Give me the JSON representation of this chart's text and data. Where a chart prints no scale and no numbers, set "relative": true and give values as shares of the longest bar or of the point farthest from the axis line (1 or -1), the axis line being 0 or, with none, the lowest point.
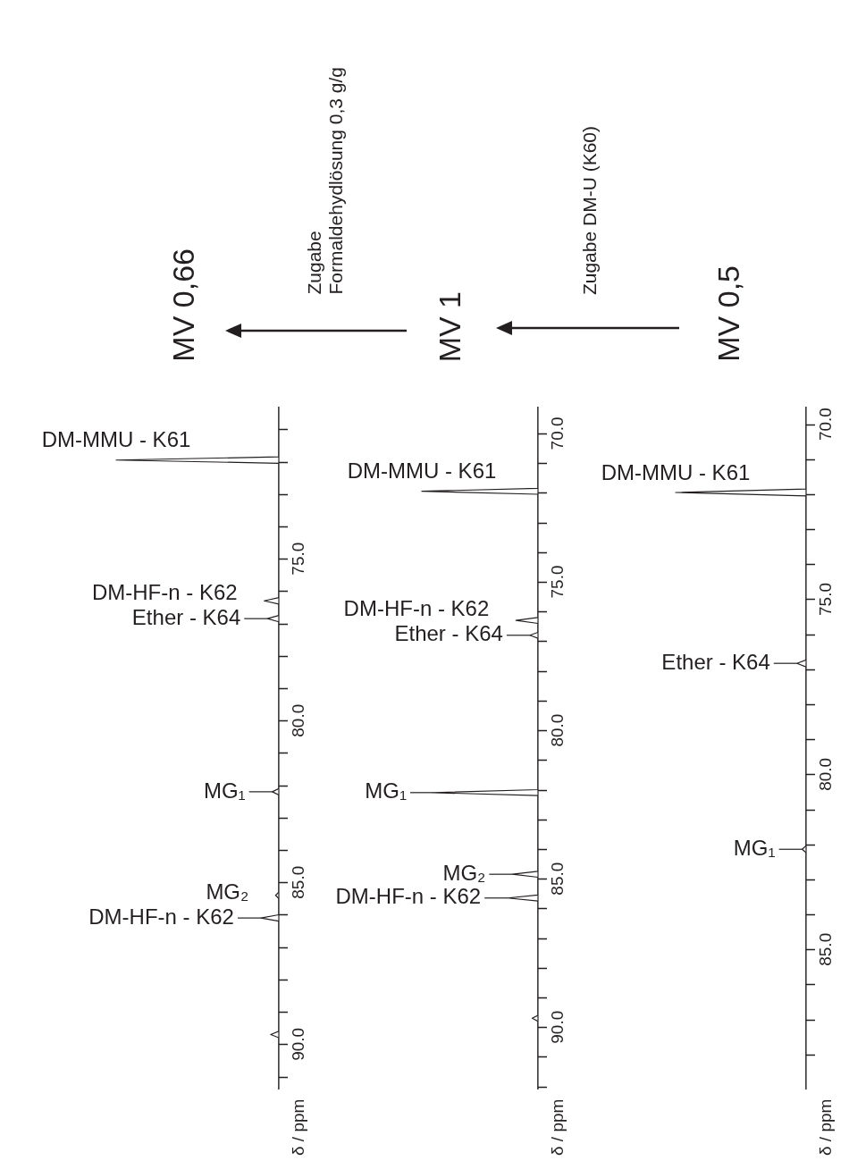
{
  "chart_data": [
    {
      "type": "line",
      "title": "MV 0,66",
      "orientation": "horizontal",
      "relative": true,
      "marker": "none",
      "color": "#231f20",
      "ylabel": "δ / ppm",
      "ylim": [
        91.4,
        70.3
      ],
      "yticks": [
        {
          "value": 71,
          "label": null
        },
        {
          "value": 72,
          "label": null
        },
        {
          "value": 73,
          "label": null
        },
        {
          "value": 74,
          "label": null
        },
        {
          "value": 75,
          "label": "75.0"
        },
        {
          "value": 76,
          "label": null
        },
        {
          "value": 77,
          "label": null
        },
        {
          "value": 78,
          "label": null
        },
        {
          "value": 79,
          "label": null
        },
        {
          "value": 80,
          "label": "80.0"
        },
        {
          "value": 81,
          "label": null
        },
        {
          "value": 82,
          "label": null
        },
        {
          "value": 83,
          "label": null
        },
        {
          "value": 84,
          "label": null
        },
        {
          "value": 85,
          "label": "85.0"
        },
        {
          "value": 86,
          "label": null
        },
        {
          "value": 87,
          "label": null
        },
        {
          "value": 88,
          "label": null
        },
        {
          "value": 89,
          "label": null
        },
        {
          "value": 90,
          "label": "90.0"
        },
        {
          "value": 91,
          "label": null
        }
      ],
      "x": [
        70.3,
        71.85,
        71.95,
        72.05,
        76.2,
        76.3,
        76.4,
        76.75,
        76.85,
        76.95,
        82.1,
        82.2,
        82.3,
        85.3,
        85.4,
        85.5,
        86.0,
        86.1,
        86.2,
        89.6,
        89.7,
        89.8,
        91.4
      ],
      "values": [
        0,
        0,
        -1,
        0,
        0,
        -0.09,
        0,
        0,
        -0.07,
        0,
        0,
        -0.04,
        0,
        0,
        -0.02,
        0,
        0,
        -0.11,
        0,
        0,
        -0.05,
        0,
        0
      ],
      "annotations": [
        "Zugabe\nFormaldehydlösung 0,3 g/g",
        {
          "text": "DM-MMU - K61",
          "x": -1,
          "y": 71.95
        },
        {
          "text": "DM-HF-n - K62",
          "x": -0.09,
          "y": 76.3
        },
        {
          "text": "Ether - K64",
          "x": -0.07,
          "y": 76.85
        },
        {
          "text": "MG₁",
          "x": -0.04,
          "y": 82.2
        },
        {
          "text": "MG₂",
          "x": -0.02,
          "y": 85.4
        },
        {
          "text": "DM-HF-n - K62",
          "x": -0.11,
          "y": 86.1
        }
      ]
    },
    {
      "type": "line",
      "title": "MV 1",
      "orientation": "horizontal",
      "relative": true,
      "marker": "none",
      "color": "#231f20",
      "ylabel": "δ / ppm",
      "ylim": [
        92.1,
        69.1
      ],
      "yticks": [
        {
          "value": 70,
          "label": "70.0"
        },
        {
          "value": 71,
          "label": null
        },
        {
          "value": 72,
          "label": null
        },
        {
          "value": 73,
          "label": null
        },
        {
          "value": 74,
          "label": null
        },
        {
          "value": 75,
          "label": "75.0"
        },
        {
          "value": 76,
          "label": null
        },
        {
          "value": 77,
          "label": null
        },
        {
          "value": 78,
          "label": null
        },
        {
          "value": 79,
          "label": null
        },
        {
          "value": 80,
          "label": "80.0"
        },
        {
          "value": 81,
          "label": null
        },
        {
          "value": 82,
          "label": null
        },
        {
          "value": 83,
          "label": null
        },
        {
          "value": 84,
          "label": null
        },
        {
          "value": 85,
          "label": "85.0"
        },
        {
          "value": 86,
          "label": null
        },
        {
          "value": 87,
          "label": null
        },
        {
          "value": 88,
          "label": null
        },
        {
          "value": 89,
          "label": null
        },
        {
          "value": 90,
          "label": "90.0"
        },
        {
          "value": 91,
          "label": null
        },
        {
          "value": 92,
          "label": null
        }
      ],
      "x": [
        69.1,
        71.85,
        71.95,
        72.05,
        76.2,
        76.3,
        76.4,
        76.7,
        76.8,
        76.9,
        82.0,
        82.1,
        82.2,
        84.75,
        84.85,
        84.95,
        85.55,
        85.65,
        85.75,
        89.6,
        89.7,
        89.8,
        92.1
      ],
      "values": [
        0,
        0,
        -1,
        0,
        0,
        -0.19,
        0,
        0,
        -0.07,
        0,
        0,
        -0.9,
        0,
        0,
        -0.22,
        0,
        0,
        -0.26,
        0,
        0,
        -0.05,
        0,
        0
      ],
      "annotations": [
        "Zugabe DM-U (K60)",
        {
          "text": "DM-MMU - K61",
          "x": -1,
          "y": 71.95
        },
        {
          "text": "DM-HF-n - K62",
          "x": -0.19,
          "y": 76.3
        },
        {
          "text": "Ether - K64",
          "x": -0.07,
          "y": 76.8
        },
        {
          "text": "MG₁",
          "x": -0.9,
          "y": 82.1
        },
        {
          "text": "MG₂",
          "x": -0.22,
          "y": 84.85
        },
        {
          "text": "DM-HF-n - K62",
          "x": -0.26,
          "y": 85.65
        }
      ]
    },
    {
      "type": "line",
      "title": "MV 0,5",
      "orientation": "horizontal",
      "relative": true,
      "marker": "none",
      "color": "#231f20",
      "ylabel": "δ / ppm",
      "ylim": [
        89.0,
        69.5
      ],
      "yticks": [
        {
          "value": 70,
          "label": "70.0"
        },
        {
          "value": 71,
          "label": null
        },
        {
          "value": 72,
          "label": null
        },
        {
          "value": 73,
          "label": null
        },
        {
          "value": 74,
          "label": null
        },
        {
          "value": 75,
          "label": "75.0"
        },
        {
          "value": 76,
          "label": null
        },
        {
          "value": 77,
          "label": null
        },
        {
          "value": 78,
          "label": null
        },
        {
          "value": 79,
          "label": null
        },
        {
          "value": 80,
          "label": "80.0"
        },
        {
          "value": 81,
          "label": null
        },
        {
          "value": 82,
          "label": null
        },
        {
          "value": 83,
          "label": null
        },
        {
          "value": 84,
          "label": null
        },
        {
          "value": 85,
          "label": "85.0"
        },
        {
          "value": 86,
          "label": null
        },
        {
          "value": 87,
          "label": null
        },
        {
          "value": 88,
          "label": null
        }
      ],
      "x": [
        69.5,
        71.85,
        71.95,
        72.05,
        76.73,
        76.83,
        76.93,
        82.04,
        82.14,
        82.24,
        89.0
      ],
      "values": [
        0,
        0,
        -1,
        0,
        0,
        -0.07,
        0,
        0,
        -0.03,
        0,
        0
      ],
      "annotations": [
        {
          "text": "DM-MMU - K61",
          "x": -1,
          "y": 71.95
        },
        {
          "text": "Ether - K64",
          "x": -0.07,
          "y": 76.83
        },
        {
          "text": "MG₁",
          "x": -0.03,
          "y": 82.14
        }
      ]
    }
  ]
}
